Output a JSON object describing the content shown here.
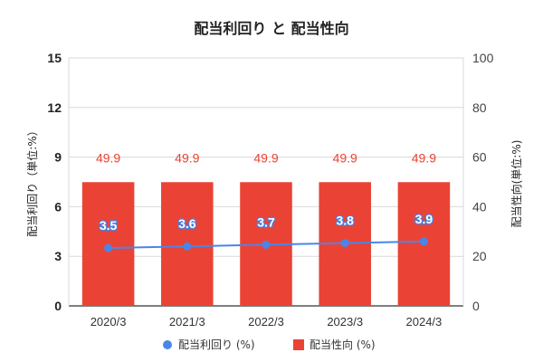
{
  "chart_data": {
    "type": "bar",
    "title": "配当利回り と 配当性向",
    "categories": [
      "2020/3",
      "2021/3",
      "2022/3",
      "2023/3",
      "2024/3"
    ],
    "series": [
      {
        "name": "配当利回り (%)",
        "kind": "line",
        "axis": "left",
        "color": "#4a86e8",
        "values": [
          3.5,
          3.6,
          3.7,
          3.8,
          3.9
        ]
      },
      {
        "name": "配当性向 (%)",
        "kind": "bar",
        "axis": "right",
        "color": "#ea4335",
        "values": [
          49.9,
          49.9,
          49.9,
          49.9,
          49.9
        ]
      }
    ],
    "ylabel": "配当利回り（単位:%）",
    "y2label": "配当性向(単位:%)",
    "ylim": [
      0,
      15
    ],
    "yticks": [
      "0",
      "3",
      "6",
      "9",
      "12",
      "15"
    ],
    "y2lim": [
      0,
      100
    ],
    "y2ticks": [
      "0",
      "20",
      "40",
      "60",
      "80",
      "100"
    ],
    "grid": true,
    "legend": "bottom"
  }
}
